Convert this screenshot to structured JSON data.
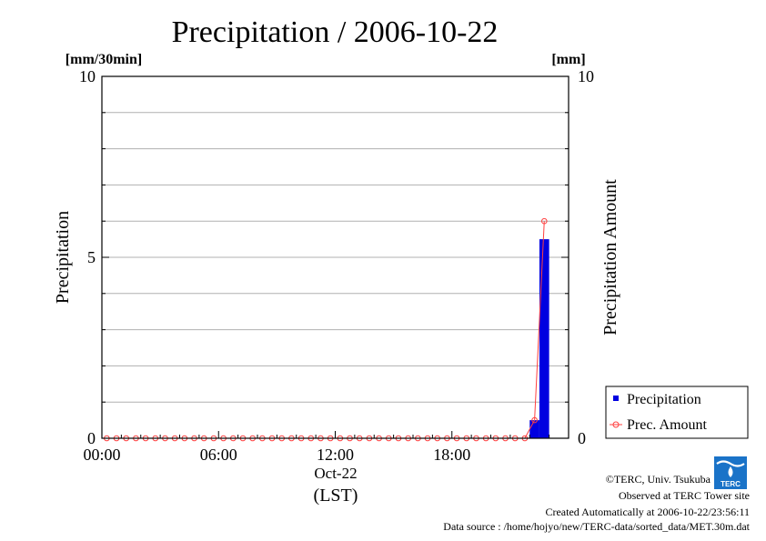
{
  "chart_data": {
    "type": "bar",
    "title": "Precipitation / 2006-10-22",
    "left_unit": "[mm/30min]",
    "right_unit": "[mm]",
    "left_ylabel": "Precipitation",
    "right_ylabel": "Precipitation Amount",
    "ylim_left": [
      0,
      10
    ],
    "ylim_right": [
      0,
      10
    ],
    "left_ticks": [
      "0",
      "5",
      "10"
    ],
    "right_ticks": [
      "0",
      "10"
    ],
    "x_ticks": [
      "00:00",
      "06:00",
      "12:00",
      "18:00"
    ],
    "x_date": "Oct-22",
    "x_label": "(LST)",
    "legend_position": "bottom-right",
    "colors": {
      "bar": "#0000e0",
      "line": "#ff4040",
      "grid": "#b0b0b0"
    },
    "series": [
      {
        "name": "Precipitation",
        "type": "bar",
        "axis": "left",
        "values": [
          0,
          0,
          0,
          0,
          0,
          0,
          0,
          0,
          0,
          0,
          0,
          0,
          0,
          0,
          0,
          0,
          0,
          0,
          0,
          0,
          0,
          0,
          0,
          0,
          0,
          0,
          0,
          0,
          0,
          0,
          0,
          0,
          0,
          0,
          0,
          0,
          0,
          0,
          0,
          0,
          0,
          0,
          0,
          0,
          0.5,
          5.5,
          0,
          0
        ]
      },
      {
        "name": "Prec. Amount",
        "type": "line",
        "axis": "right",
        "values": [
          0,
          0,
          0,
          0,
          0,
          0,
          0,
          0,
          0,
          0,
          0,
          0,
          0,
          0,
          0,
          0,
          0,
          0,
          0,
          0,
          0,
          0,
          0,
          0,
          0,
          0,
          0,
          0,
          0,
          0,
          0,
          0,
          0,
          0,
          0,
          0,
          0,
          0,
          0,
          0,
          0,
          0,
          0,
          0,
          0.5,
          6.0
        ]
      }
    ]
  },
  "footer": {
    "copyright": "©TERC, Univ. Tsukuba",
    "observed": "Observed at TERC Tower site",
    "created": "Created Automatically at 2006-10-22/23:56:11",
    "source": "Data source : /home/hojyo/new/TERC-data/sorted_data/MET.30m.dat",
    "logo_text": "TERC"
  }
}
